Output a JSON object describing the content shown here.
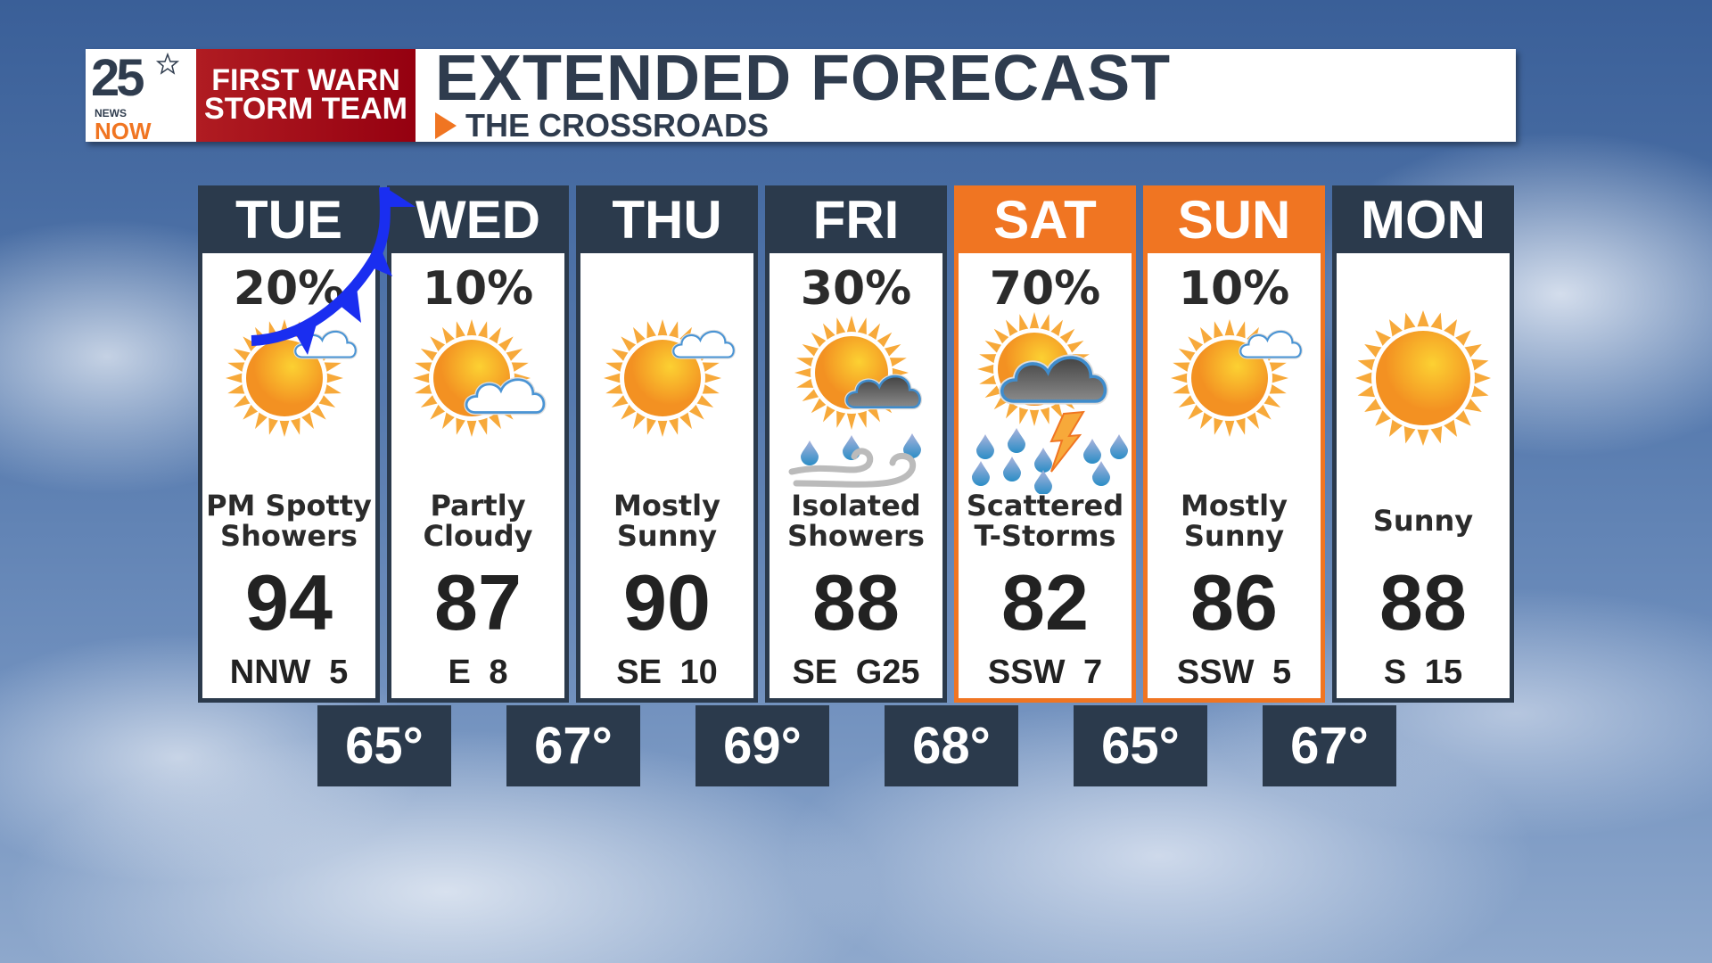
{
  "header": {
    "logo_number": "25",
    "logo_news": "NEWS",
    "logo_now": "NOW",
    "brand_line1": "FIRST WARN",
    "brand_line2": "STORM TEAM",
    "title": "EXTENDED FORECAST",
    "subtitle": "THE CROSSROADS"
  },
  "colors": {
    "accent": "#f07522",
    "panel": "#2b3a4c",
    "brand_red": "#a0101a",
    "front": "#1a2ef0"
  },
  "days": [
    {
      "day": "TUE",
      "pop": "20%",
      "icon": "sun-cloud-small",
      "cond1": "PM Spotty",
      "cond2": "Showers",
      "high": "94",
      "wind": "NNW 5",
      "highlight": false
    },
    {
      "day": "WED",
      "pop": "10%",
      "icon": "sun-cloud-partly",
      "cond1": "Partly",
      "cond2": "Cloudy",
      "high": "87",
      "wind": "E 8",
      "highlight": false
    },
    {
      "day": "THU",
      "pop": "",
      "icon": "sun-cloud-small",
      "cond1": "Mostly",
      "cond2": "Sunny",
      "high": "90",
      "wind": "SE 10",
      "highlight": false
    },
    {
      "day": "FRI",
      "pop": "30%",
      "icon": "sun-rain-wind",
      "cond1": "Isolated",
      "cond2": "Showers",
      "high": "88",
      "wind": "SE G25",
      "highlight": false
    },
    {
      "day": "SAT",
      "pop": "70%",
      "icon": "thunderstorm",
      "cond1": "Scattered",
      "cond2": "T-Storms",
      "high": "82",
      "wind": "SSW 7",
      "highlight": true
    },
    {
      "day": "SUN",
      "pop": "10%",
      "icon": "sun-cloud-small",
      "cond1": "Mostly",
      "cond2": "Sunny",
      "high": "86",
      "wind": "SSW 5",
      "highlight": true
    },
    {
      "day": "MON",
      "pop": "",
      "icon": "sun",
      "cond1": "Sunny",
      "cond2": "",
      "high": "88",
      "wind": "S 15",
      "highlight": false
    }
  ],
  "lows": [
    "65°",
    "67°",
    "69°",
    "68°",
    "65°",
    "67°"
  ],
  "overlay": {
    "cold_front": true
  }
}
